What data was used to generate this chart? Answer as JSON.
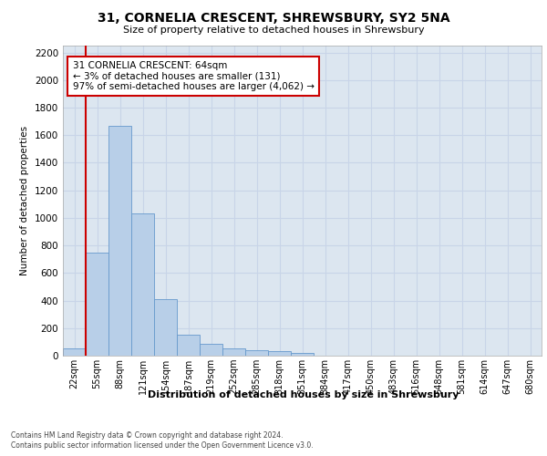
{
  "title": "31, CORNELIA CRESCENT, SHREWSBURY, SY2 5NA",
  "subtitle": "Size of property relative to detached houses in Shrewsbury",
  "xlabel": "Distribution of detached houses by size in Shrewsbury",
  "ylabel": "Number of detached properties",
  "bin_labels": [
    "22sqm",
    "55sqm",
    "88sqm",
    "121sqm",
    "154sqm",
    "187sqm",
    "219sqm",
    "252sqm",
    "285sqm",
    "318sqm",
    "351sqm",
    "384sqm",
    "417sqm",
    "450sqm",
    "483sqm",
    "516sqm",
    "548sqm",
    "581sqm",
    "614sqm",
    "647sqm",
    "680sqm"
  ],
  "bar_heights": [
    50,
    745,
    1670,
    1035,
    410,
    155,
    85,
    50,
    40,
    30,
    20,
    0,
    0,
    0,
    0,
    0,
    0,
    0,
    0,
    0,
    0
  ],
  "bar_color": "#b8cfe8",
  "bar_edgecolor": "#6699cc",
  "annotation_text": "31 CORNELIA CRESCENT: 64sqm\n← 3% of detached houses are smaller (131)\n97% of semi-detached houses are larger (4,062) →",
  "annotation_box_color": "#ffffff",
  "annotation_box_edgecolor": "#cc0000",
  "vline_color": "#cc0000",
  "ylim": [
    0,
    2250
  ],
  "yticks": [
    0,
    200,
    400,
    600,
    800,
    1000,
    1200,
    1400,
    1600,
    1800,
    2000,
    2200
  ],
  "grid_color": "#c8d4e8",
  "bg_color": "#dce6f0",
  "footer_line1": "Contains HM Land Registry data © Crown copyright and database right 2024.",
  "footer_line2": "Contains public sector information licensed under the Open Government Licence v3.0."
}
